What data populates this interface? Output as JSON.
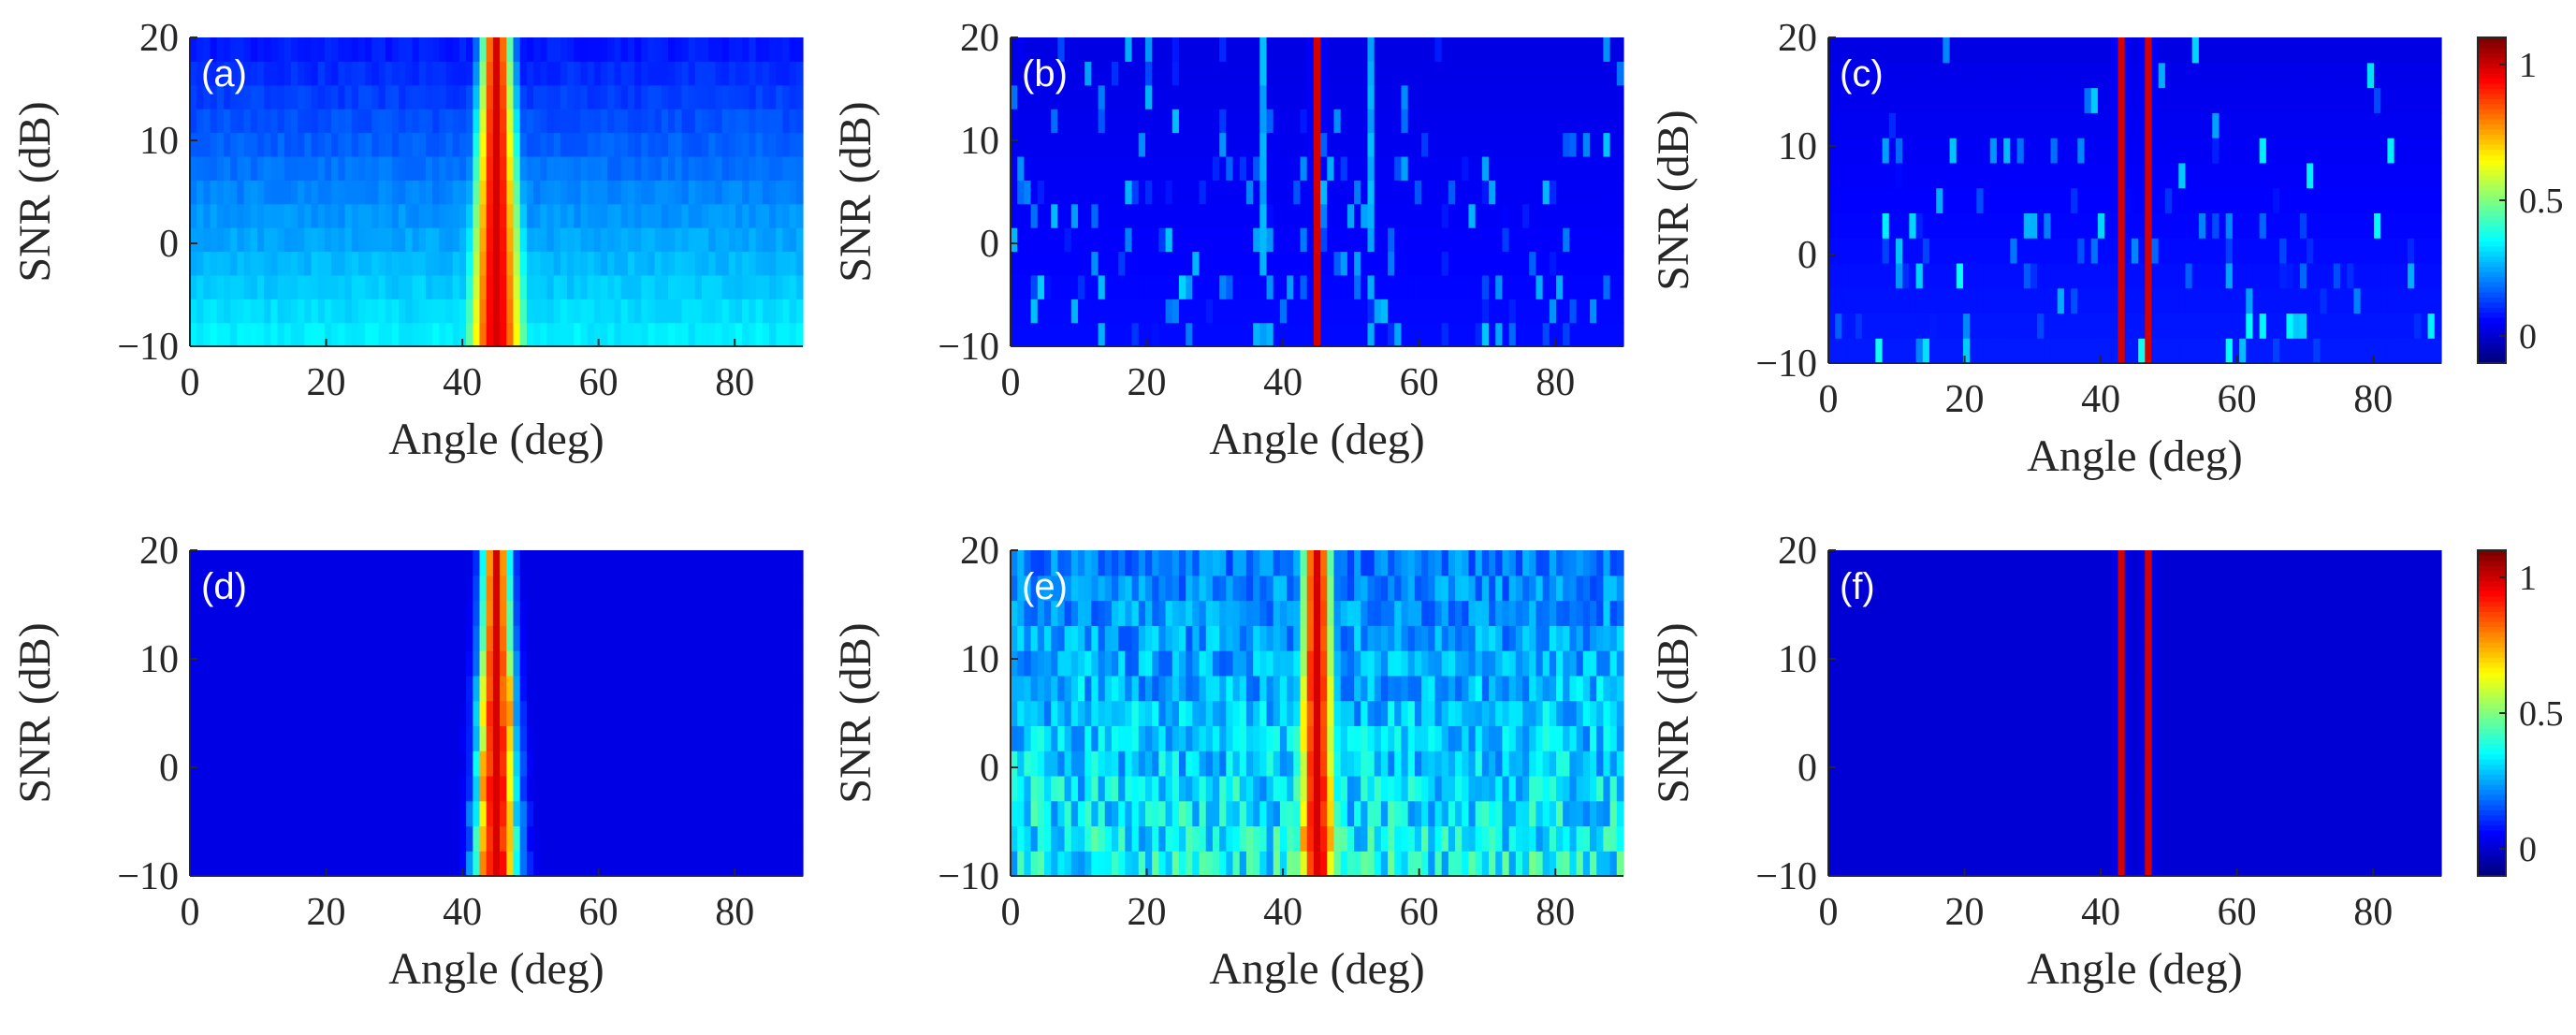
{
  "colors": {
    "background": "#ffffff",
    "axis": "#262626",
    "panel_label": "#ffffff"
  },
  "chart_data": {
    "type": "heatmap",
    "colormap": "jet",
    "shared": {
      "xlabel": "Angle (deg)",
      "ylabel": "SNR (dB)",
      "xlim": [
        0,
        90
      ],
      "ylim": [
        -10,
        20
      ],
      "xticks": [
        0,
        20,
        40,
        60,
        80
      ],
      "yticks": [
        -10,
        0,
        10,
        20
      ],
      "xtick_labels": [
        "0",
        "20",
        "40",
        "60",
        "80"
      ],
      "ytick_labels": [
        "−10",
        "0",
        "10",
        "20"
      ],
      "angle_step": 1,
      "snr_levels": [
        -10,
        -7.5,
        -5,
        -2.5,
        0,
        2.5,
        5,
        7.5,
        10,
        12.5,
        15,
        17.5,
        20
      ]
    },
    "colorbar": {
      "range": [
        -0.1,
        1.1
      ],
      "ticks": [
        0,
        0.5,
        1
      ],
      "tick_labels": [
        "0",
        "0.5",
        "1"
      ]
    },
    "panels": [
      {
        "label": "(a)",
        "description": "Broad main lobe around 45 deg widening at low SNR; background level rises at low SNR",
        "peaks": [
          {
            "angle": 45,
            "width_high_snr": 1.6,
            "width_low_snr": 3.2,
            "amplitude": 1.0
          }
        ],
        "background_high_snr": 0.08,
        "background_low_snr": 0.33
      },
      {
        "label": "(b)",
        "description": "Sharp spectral line at 45 deg with weak spurious lines near 37 and 53 deg",
        "peaks": [
          {
            "angle": 45,
            "width": 0.4,
            "amplitude": 1.0
          }
        ],
        "side_lines": [
          {
            "angle": 37,
            "amplitude": 0.22
          },
          {
            "angle": 53,
            "amplitude": 0.22
          }
        ],
        "background_high_snr": 0.02,
        "background_low_snr": 0.06
      },
      {
        "label": "(c)",
        "description": "Two sharp lines near 43 and 47 deg with speckle clutter",
        "peaks": [
          {
            "angle": 43,
            "width": 0.4,
            "amplitude": 1.0
          },
          {
            "angle": 47,
            "width": 0.4,
            "amplitude": 1.0
          }
        ],
        "background_high_snr": 0.02,
        "background_low_snr": 0.08
      },
      {
        "label": "(d)",
        "description": "Merged peak around 45 deg, irregular at low SNR, flat background",
        "peaks": [
          {
            "angle": 45,
            "width_high_snr": 1.4,
            "width_low_snr": 2.2,
            "amplitude": 1.0
          }
        ],
        "background_high_snr": 0.02,
        "background_low_snr": 0.02
      },
      {
        "label": "(e)",
        "description": "Peak around 45 deg with strong noisy background across all angles",
        "peaks": [
          {
            "angle": 45,
            "width_high_snr": 1.6,
            "width_low_snr": 2.4,
            "amplitude": 1.0
          }
        ],
        "background_high_snr": 0.12,
        "background_low_snr": 0.22
      },
      {
        "label": "(f)",
        "description": "Two clean sharp lines near 43 and 47 deg resolved at all SNR",
        "peaks": [
          {
            "angle": 43,
            "width": 0.35,
            "amplitude": 1.0
          },
          {
            "angle": 47,
            "width": 0.35,
            "amplitude": 1.0
          }
        ],
        "background_high_snr": 0.0,
        "background_low_snr": 0.0
      }
    ]
  }
}
